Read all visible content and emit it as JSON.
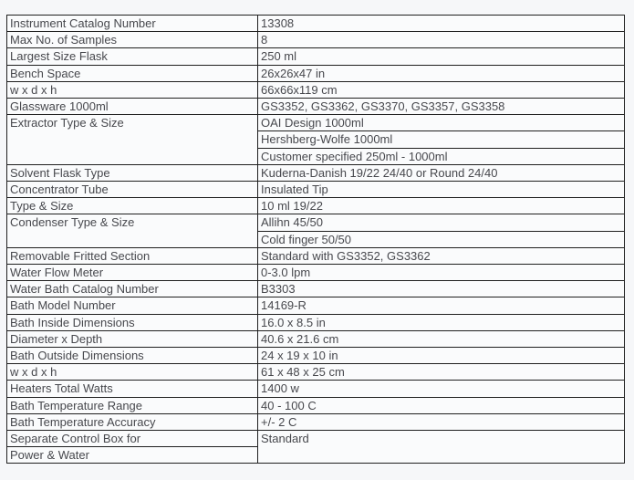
{
  "table": {
    "name": "instrument-specifications",
    "rows": [
      {
        "label": "Instrument Catalog Number",
        "value": "13308"
      },
      {
        "label": "Max No. of Samples",
        "value": "8"
      },
      {
        "label": "Largest Size Flask",
        "value": "250 ml"
      },
      {
        "label": "Bench Space",
        "value": "26x26x47 in"
      },
      {
        "label": "w x d x h",
        "value": "66x66x119 cm"
      },
      {
        "label": "Glassware 1000ml",
        "value": "GS3352, GS3362, GS3370, GS3357, GS3358"
      },
      {
        "label": "Extractor Type & Size",
        "label_rowspan": 3,
        "value": "OAI Design 1000ml"
      },
      {
        "value": "Hershberg-Wolfe 1000ml"
      },
      {
        "value": "Customer specified 250ml - 1000ml"
      },
      {
        "label": "Solvent Flask Type",
        "value": "Kuderna-Danish 19/22 24/40 or Round 24/40"
      },
      {
        "label": "Concentrator Tube",
        "value": "Insulated Tip"
      },
      {
        "label": "Type & Size",
        "value": "10 ml 19/22"
      },
      {
        "label": "Condenser Type & Size",
        "label_rowspan": 2,
        "value": "Allihn 45/50"
      },
      {
        "value": "Cold finger 50/50"
      },
      {
        "label": "Removable Fritted Section",
        "value": "Standard with GS3352, GS3362"
      },
      {
        "label": "Water Flow Meter",
        "value": "0-3.0 lpm"
      },
      {
        "label": "Water Bath Catalog Number",
        "value": "B3303"
      },
      {
        "label": "Bath Model Number",
        "value": "14169-R"
      },
      {
        "label": "Bath Inside Dimensions",
        "value": "16.0 x 8.5 in"
      },
      {
        "label": "Diameter x Depth",
        "value": "40.6 x 21.6 cm"
      },
      {
        "label": "Bath Outside Dimensions",
        "value": "24 x 19 x 10 in"
      },
      {
        "label": "w x d x h",
        "value": "61 x 48 x 25 cm"
      },
      {
        "label": "Heaters Total Watts",
        "value": "1400 w"
      },
      {
        "label": "Bath Temperature Range",
        "value": "40 - 100 C"
      },
      {
        "label": "Bath Temperature Accuracy",
        "value": "+/- 2 C"
      },
      {
        "label": "Separate Control Box for",
        "value": "Standard",
        "value_rowspan": 2
      },
      {
        "label": "Power & Water"
      }
    ]
  },
  "colors": {
    "page_background": "#f6f7f9",
    "cell_background": "#fafbfc",
    "border": "#1f1f1f",
    "text": "#47484d"
  }
}
